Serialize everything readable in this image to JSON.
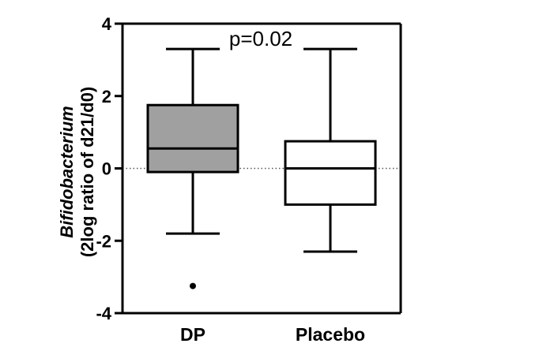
{
  "chart_data": {
    "type": "box",
    "title": "",
    "ylabel_italic": "Bifidobacterium",
    "ylabel": "(2log ratio of d21/d0)",
    "xlabel": "",
    "ylim": [
      -4,
      4
    ],
    "yticks": [
      -4,
      -2,
      0,
      2,
      4
    ],
    "ytick_labels": [
      "-4",
      "-2",
      "0",
      "2",
      "4"
    ],
    "reference_line": 0,
    "annotation": "p=0.02",
    "categories": [
      "DP",
      "Placebo"
    ],
    "boxes": [
      {
        "category": "DP",
        "whisker_low": -1.8,
        "q1": -0.1,
        "median": 0.55,
        "q3": 1.75,
        "whisker_high": 3.3,
        "outliers": [
          -3.25
        ],
        "fill": "#a0a0a0"
      },
      {
        "category": "Placebo",
        "whisker_low": -2.3,
        "q1": -1.0,
        "median": 0.0,
        "q3": 0.75,
        "whisker_high": 3.3,
        "outliers": [],
        "fill": "#ffffff"
      }
    ]
  }
}
